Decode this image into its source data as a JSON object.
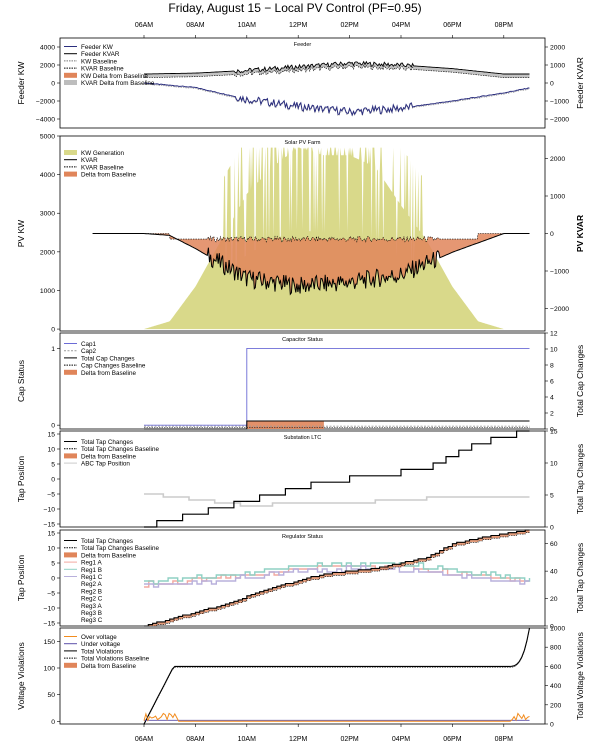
{
  "title": "Friday, August 15  − Local PV Control (PF=0.95)",
  "time_ticks": [
    "06AM",
    "08AM",
    "10AM",
    "12PM",
    "02PM",
    "04PM",
    "06PM",
    "08PM"
  ],
  "colors": {
    "feeder_kw": "#2b2e7e",
    "delta": "#e0855a",
    "kvar_delta": "#bdbdbd",
    "kw_generation": "#d9d98a",
    "cap1": "#6b6bd6",
    "orange": "#f28c1e",
    "purple": "#5b4fa8",
    "reg_a": "#f2a8a0",
    "reg_b": "#8fd0c4",
    "reg_c": "#b8b0dc",
    "gray_line": "#cccccc"
  },
  "chart_data": [
    {
      "type": "line",
      "title": "Feeder",
      "ylabel": "Feeder KW",
      "y2label": "Feeder KVAR",
      "ylim": [
        -5000,
        5000
      ],
      "yticks": [
        -4000,
        -2000,
        0,
        2000,
        4000
      ],
      "y2lim": [
        -2500,
        2500
      ],
      "y2ticks": [
        -2000,
        -1000,
        0,
        1000,
        2000
      ],
      "legend": [
        "Feeder KW",
        "Feeder KVAR",
        "KW Baseline",
        "KVAR Baseline",
        "KW Delta from Baseline",
        "KVAR Delta from Baseline"
      ],
      "legend_position": "top-left",
      "series": [
        {
          "name": "Feeder KW",
          "x": [
            0,
            4,
            6,
            8,
            10,
            12,
            14,
            16,
            18,
            20,
            22,
            24
          ],
          "values": [
            0,
            0,
            0,
            -500,
            -1800,
            -2600,
            -3200,
            -2800,
            -2000,
            -1100,
            0,
            0
          ]
        },
        {
          "name": "Feeder KVAR",
          "x": [
            0,
            4,
            6,
            8,
            10,
            12,
            14,
            16,
            18,
            20,
            22,
            24
          ],
          "values": [
            500,
            500,
            500,
            550,
            700,
            900,
            1100,
            1000,
            800,
            500,
            500,
            500
          ]
        }
      ]
    },
    {
      "type": "area",
      "title": "Solar PV Farm",
      "ylabel": "PV KW",
      "y2label": "PV KVAR",
      "ylim": [
        -50,
        5000
      ],
      "yticks": [
        0,
        1000,
        2000,
        3000,
        4000,
        5000
      ],
      "y2lim": [
        -2600,
        2600
      ],
      "y2ticks": [
        -2000,
        -1000,
        0,
        1000,
        2000
      ],
      "legend": [
        "KW Generation",
        "KVAR",
        "KVAR Baseline",
        "Delta from Baseline"
      ],
      "legend_position": "top-left",
      "series": [
        {
          "name": "KW Generation",
          "x": [
            0,
            4,
            6,
            7,
            8,
            9,
            10,
            11,
            12,
            13,
            14,
            15,
            16,
            17,
            18,
            19,
            20,
            24
          ],
          "values": [
            0,
            0,
            0,
            200,
            1100,
            2300,
            3500,
            4200,
            4700,
            4500,
            4500,
            4200,
            3200,
            2300,
            1100,
            200,
            0,
            0
          ]
        },
        {
          "name": "KVAR",
          "x": [
            0,
            4,
            6,
            7,
            8,
            10,
            12,
            14,
            16,
            18,
            20,
            24
          ],
          "values": [
            0,
            0,
            0,
            -50,
            -400,
            -1200,
            -1400,
            -1300,
            -1100,
            -500,
            0,
            0
          ]
        }
      ]
    },
    {
      "type": "line",
      "title": "Capacitor Status",
      "ylabel": "Cap Status",
      "y2label": "Total Cap Changes",
      "ylim": [
        -0.05,
        1.2
      ],
      "yticks": [
        0,
        1
      ],
      "y2lim": [
        0,
        12
      ],
      "y2ticks": [
        0,
        2,
        4,
        6,
        8,
        10,
        12
      ],
      "legend": [
        "Cap1",
        "Cap2",
        "Total Cap Changes",
        "Cap Changes Baseline",
        "Delta from Baseline"
      ],
      "legend_position": "top-left",
      "series": [
        {
          "name": "Cap1",
          "x": [
            6,
            10,
            10,
            21
          ],
          "values": [
            0,
            0,
            1,
            1
          ]
        },
        {
          "name": "Total Cap Changes",
          "x": [
            6,
            10,
            10,
            21
          ],
          "values": [
            0,
            0,
            1,
            1
          ]
        }
      ]
    },
    {
      "type": "line",
      "title": "Substation LTC",
      "ylabel": "Tap Position",
      "y2label": "Total Tap Changes",
      "ylim": [
        -16,
        16
      ],
      "yticks": [
        -15,
        -10,
        -5,
        0,
        5,
        10,
        15
      ],
      "y2lim": [
        0,
        15
      ],
      "y2ticks": [
        0,
        5,
        10,
        15
      ],
      "legend": [
        "Total Tap Changes",
        "Total Tap Changes Baseline",
        "Delta from Baseline",
        "ABC Tap Position"
      ],
      "legend_position": "top-left",
      "series": [
        {
          "name": "Total Tap Changes",
          "x": [
            6,
            7,
            9,
            11,
            13,
            15,
            17,
            18,
            19,
            20,
            21
          ],
          "values": [
            0,
            1,
            3,
            5,
            7,
            8,
            9,
            11,
            13,
            14,
            15
          ]
        },
        {
          "name": "ABC Tap Position",
          "x": [
            6,
            8,
            10,
            12,
            14,
            16,
            18,
            20,
            21
          ],
          "values": [
            -5,
            -7,
            -9,
            -8,
            -8,
            -7,
            -6,
            -6,
            -6
          ]
        }
      ]
    },
    {
      "type": "line",
      "title": "Regulator Status",
      "ylabel": "Tap Position",
      "y2label": "Total Tap Changes",
      "ylim": [
        -16,
        16
      ],
      "yticks": [
        -15,
        -10,
        -5,
        0,
        5,
        10,
        15
      ],
      "y2lim": [
        0,
        70
      ],
      "y2ticks": [
        0,
        20,
        40,
        60
      ],
      "legend": [
        "Total Tap Changes",
        "Total Tap Changes Baseline",
        "Delta from Baseline",
        "Reg1 A",
        "Reg1 B",
        "Reg1 C",
        "Reg2 A",
        "Reg2 B",
        "Reg2 C",
        "Reg3 A",
        "Reg3 B",
        "Reg3 C"
      ],
      "legend_position": "top-left",
      "series": [
        {
          "name": "Total Tap Changes",
          "x": [
            6,
            7,
            9,
            11,
            13,
            15,
            17,
            18,
            19,
            20,
            21
          ],
          "values": [
            0,
            5,
            15,
            28,
            38,
            42,
            50,
            60,
            64,
            67,
            70
          ]
        }
      ]
    },
    {
      "type": "line",
      "title": "",
      "ylabel": "Voltage Violations",
      "y2label": "Total Voltage Violations",
      "ylim": [
        -5,
        175
      ],
      "yticks": [
        0,
        50,
        100,
        150
      ],
      "y2lim": [
        0,
        1000
      ],
      "y2ticks": [
        0,
        200,
        400,
        600,
        800,
        1000
      ],
      "legend": [
        "Over voltage",
        "Under voltage",
        "Total Violations",
        "Total Violations Baseline",
        "Delta from Baseline"
      ],
      "legend_position": "top-left",
      "series": [
        {
          "name": "Over voltage",
          "x": [
            6,
            6.5,
            7,
            7.5,
            20.5,
            21
          ],
          "values": [
            0,
            15,
            0,
            0,
            0,
            15
          ]
        },
        {
          "name": "Total Violations",
          "x": [
            6,
            6.5,
            7,
            8,
            20,
            20.5,
            21
          ],
          "values": [
            0,
            300,
            590,
            600,
            600,
            700,
            1000
          ]
        }
      ]
    }
  ]
}
